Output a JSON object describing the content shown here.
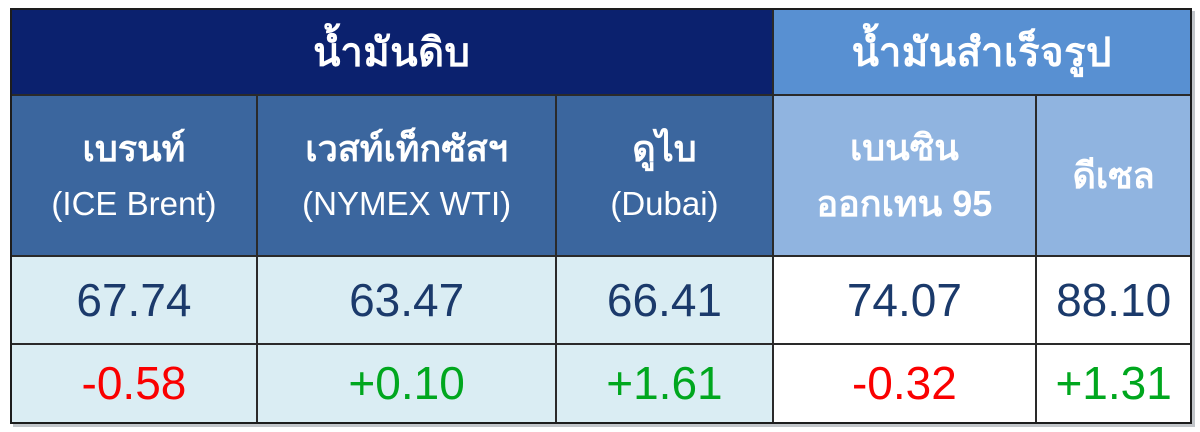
{
  "table_title_groups": {
    "crude": "น้ำมันดิบ",
    "refined": "น้ำมันสำเร็จรูป"
  },
  "columns": [
    {
      "group": "crude",
      "line1": "เบรนท์",
      "line2": "(ICE Brent)",
      "price": "67.74",
      "change": "-0.58",
      "direction": "down"
    },
    {
      "group": "crude",
      "line1": "เวสท์เท็กซัสฯ",
      "line2": "(NYMEX WTI)",
      "price": "63.47",
      "change": "+0.10",
      "direction": "up"
    },
    {
      "group": "crude",
      "line1": "ดูไบ",
      "line2": "(Dubai)",
      "price": "66.41",
      "change": "+1.61",
      "direction": "up"
    },
    {
      "group": "refined",
      "line1": "เบนซิน",
      "line2": "ออกเทน 95",
      "price": "74.07",
      "change": "-0.32",
      "direction": "down"
    },
    {
      "group": "refined",
      "line1": "ดีเซล",
      "line2": "",
      "price": "88.10",
      "change": "+1.31",
      "direction": "up"
    }
  ],
  "colors": {
    "crude_group_header_bg": "#0b216e",
    "refined_group_header_bg": "#5890d2",
    "crude_col_header_bg": "#3b669e",
    "refined_col_header_bg": "#90b4e0",
    "crude_data_bg": "#daedf3",
    "refined_data_bg": "#ffffff",
    "price_text": "#1b3a6b",
    "negative_change": "#fa0000",
    "positive_change": "#00a71e",
    "header_text": "#ffffff",
    "grid_line": "#2a2a2a"
  },
  "chart_data": {
    "type": "table",
    "column_groups": [
      {
        "label": "น้ำมันดิบ",
        "columns": [
          "เบรนท์ (ICE Brent)",
          "เวสท์เท็กซัสฯ (NYMEX WTI)",
          "ดูไบ (Dubai)"
        ]
      },
      {
        "label": "น้ำมันสำเร็จรูป",
        "columns": [
          "เบนซิน ออกเทน 95",
          "ดีเซล"
        ]
      }
    ],
    "rows": [
      {
        "name": "price",
        "values": [
          67.74,
          63.47,
          66.41,
          74.07,
          88.1
        ]
      },
      {
        "name": "change",
        "values": [
          -0.58,
          0.1,
          1.61,
          -0.32,
          1.31
        ]
      }
    ]
  }
}
